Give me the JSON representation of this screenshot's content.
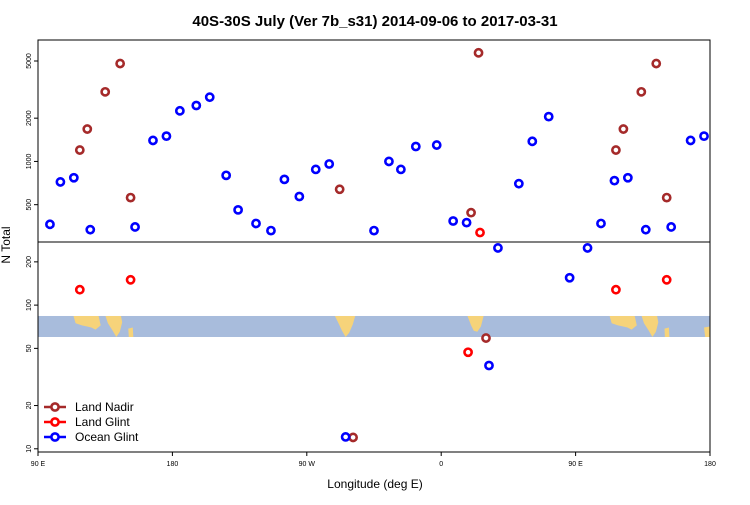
{
  "chart_data": {
    "type": "scatter",
    "title": "40S-30S July (Ver 7b_s31)   2014-09-06 to 2017-03-31",
    "xlabel": "Longitude (deg E)",
    "ylabel": "N Total",
    "y_scale": "log",
    "xlim": [
      90,
      540
    ],
    "ylim": [
      9.5,
      7000
    ],
    "x_ticks": [
      {
        "value": 90,
        "label": "90 E"
      },
      {
        "value": 180,
        "label": "180"
      },
      {
        "value": 270,
        "label": "90 W"
      },
      {
        "value": 360,
        "label": "0"
      },
      {
        "value": 450,
        "label": "90 E"
      },
      {
        "value": 540,
        "label": "180"
      }
    ],
    "y_ticks": [
      {
        "value": 10,
        "label": "10"
      },
      {
        "value": 20,
        "label": "20"
      },
      {
        "value": 50,
        "label": "50"
      },
      {
        "value": 100,
        "label": "100"
      },
      {
        "value": 200,
        "label": "200"
      },
      {
        "value": 500,
        "label": "500"
      },
      {
        "value": 1000,
        "label": "1000"
      },
      {
        "value": 2000,
        "label": "2000"
      },
      {
        "value": 5000,
        "label": "5000"
      }
    ],
    "threshold_line": 275,
    "map_band": {
      "ymin": 60,
      "ymax": 84,
      "ocean_color": "#a8bcdc",
      "land_color": "#f6d37a"
    },
    "legend_position": "bottom-left",
    "series": [
      {
        "name": "Land Nadir",
        "color": "#a52a2a",
        "points": [
          [
            118,
            1200
          ],
          [
            123,
            1680
          ],
          [
            135,
            3050
          ],
          [
            145,
            4800
          ],
          [
            152,
            560
          ],
          [
            292,
            640
          ],
          [
            301,
            12
          ],
          [
            380,
            440
          ],
          [
            385,
            5700
          ],
          [
            390,
            59
          ],
          [
            477,
            1200
          ],
          [
            482,
            1680
          ],
          [
            494,
            3050
          ],
          [
            504,
            4800
          ],
          [
            511,
            560
          ]
        ]
      },
      {
        "name": "Land Glint",
        "color": "#ff0000",
        "points": [
          [
            118,
            128
          ],
          [
            152,
            150
          ],
          [
            378,
            47
          ],
          [
            386,
            320
          ],
          [
            477,
            128
          ],
          [
            511,
            150
          ]
        ]
      },
      {
        "name": "Ocean Glint",
        "color": "#0000ff",
        "points": [
          [
            98,
            365
          ],
          [
            105,
            720
          ],
          [
            114,
            770
          ],
          [
            125,
            335
          ],
          [
            155,
            350
          ],
          [
            167,
            1400
          ],
          [
            176,
            1500
          ],
          [
            185,
            2250
          ],
          [
            196,
            2450
          ],
          [
            205,
            2800
          ],
          [
            216,
            800
          ],
          [
            224,
            460
          ],
          [
            236,
            370
          ],
          [
            246,
            330
          ],
          [
            255,
            750
          ],
          [
            265,
            570
          ],
          [
            276,
            880
          ],
          [
            285,
            960
          ],
          [
            296,
            12.1
          ],
          [
            315,
            330
          ],
          [
            325,
            1000
          ],
          [
            333,
            880
          ],
          [
            343,
            1270
          ],
          [
            357,
            1300
          ],
          [
            368,
            385
          ],
          [
            377,
            375
          ],
          [
            392,
            38
          ],
          [
            398,
            250
          ],
          [
            412,
            700
          ],
          [
            421,
            1380
          ],
          [
            432,
            2050
          ],
          [
            446,
            155
          ],
          [
            458,
            250
          ],
          [
            467,
            370
          ],
          [
            476,
            735
          ],
          [
            485,
            770
          ],
          [
            497,
            335
          ],
          [
            514,
            350
          ],
          [
            527,
            1400
          ],
          [
            536,
            1500
          ]
        ]
      }
    ]
  }
}
